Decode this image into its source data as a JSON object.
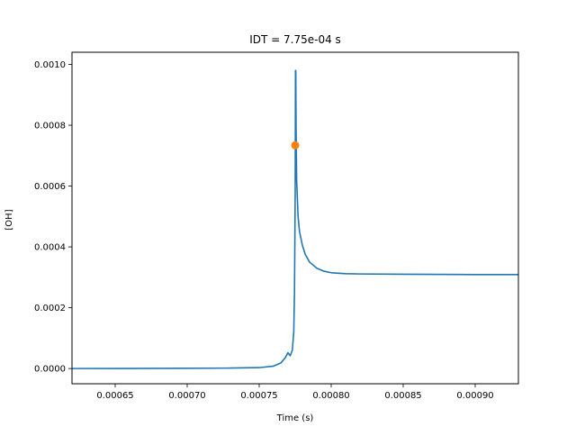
{
  "chart_data": {
    "type": "line",
    "title": "IDT = 7.75e-04 s",
    "xlabel": "Time (s)",
    "ylabel": "[OH]",
    "xlim": [
      0.00062,
      0.00093
    ],
    "ylim": [
      -5e-05,
      0.00104
    ],
    "xticks": [
      0.00065,
      0.0007,
      0.00075,
      0.0008,
      0.00085,
      0.0009
    ],
    "xtick_labels": [
      "0.00065",
      "0.00070",
      "0.00075",
      "0.00080",
      "0.00085",
      "0.00090"
    ],
    "yticks": [
      0.0,
      0.0002,
      0.0004,
      0.0006,
      0.0008,
      0.001
    ],
    "ytick_labels": [
      "0.0000",
      "0.0002",
      "0.0004",
      "0.0006",
      "0.0008",
      "0.0010"
    ],
    "grid": false,
    "series": [
      {
        "color": "#1f77b4",
        "x": [
          0.00062,
          0.00065,
          0.0007,
          0.00073,
          0.00075,
          0.00076,
          0.000765,
          0.000768,
          0.00077,
          0.0007715,
          0.000773,
          0.000774,
          0.0007745,
          0.000775,
          0.0007752,
          0.0007754,
          0.0007756,
          0.000776,
          0.000777,
          0.000778,
          0.00078,
          0.000782,
          0.000785,
          0.00079,
          0.000795,
          0.0008,
          0.00081,
          0.00082,
          0.00085,
          0.0009,
          0.00093
        ],
        "y": [
          0.0,
          3e-07,
          8e-07,
          1.5e-06,
          3e-06,
          8e-06,
          1.8e-05,
          3.5e-05,
          5.2e-05,
          4.2e-05,
          6e-05,
          0.00012,
          0.00025,
          0.00058,
          0.00098,
          0.00098,
          0.0008,
          0.00062,
          0.0005,
          0.00045,
          0.000405,
          0.000375,
          0.00035,
          0.00033,
          0.00032,
          0.000315,
          0.000312,
          0.000311,
          0.00031,
          0.000309,
          0.000309
        ]
      },
      {
        "color": "#ff7f0e",
        "marker": "circle",
        "x": [
          0.000775
        ],
        "y": [
          0.000734
        ]
      }
    ]
  }
}
